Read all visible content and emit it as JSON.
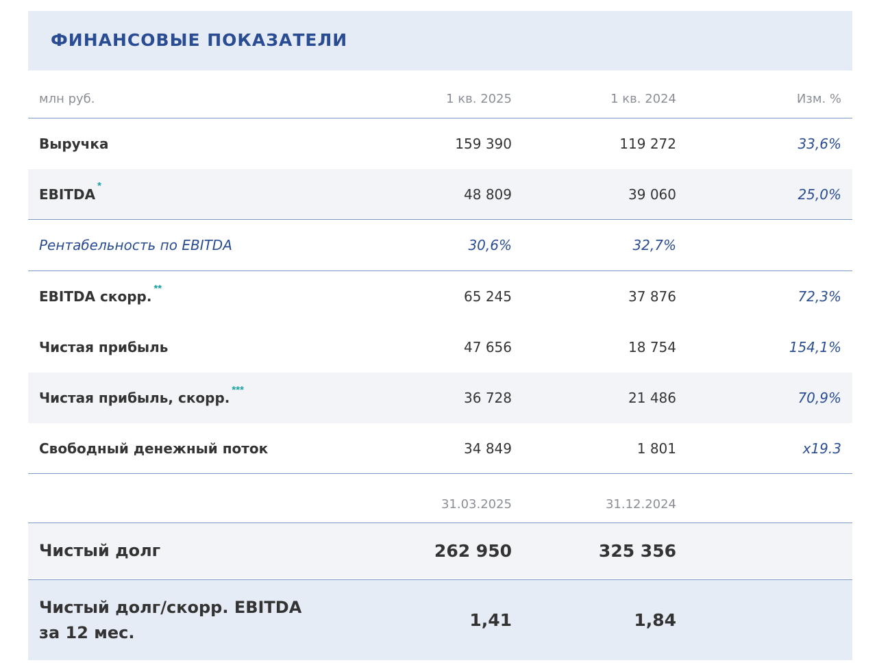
{
  "title": "ФИНАНСОВЫЕ ПОКАЗАТЕЛИ",
  "columns": {
    "unit": "млн руб.",
    "period1": "1 кв. 2025",
    "period2": "1 кв. 2024",
    "change": "Изм. %"
  },
  "rows": [
    {
      "label": "Выручка",
      "marker": "",
      "v1": "159 390",
      "v2": "119 272",
      "change": "33,6%"
    },
    {
      "label": "EBITDA",
      "marker": "*",
      "v1": "48 809",
      "v2": "39 060",
      "change": "25,0%"
    },
    {
      "label": "Рентабельность по EBITDA",
      "marker": "",
      "v1": "30,6%",
      "v2": "32,7%",
      "change": ""
    },
    {
      "label": "EBITDA скорр.",
      "marker": "**",
      "v1": "65 245",
      "v2": "37 876",
      "change": "72,3%"
    },
    {
      "label": "Чистая прибыль",
      "marker": "",
      "v1": "47 656",
      "v2": "18 754",
      "change": "154,1%"
    },
    {
      "label": "Чистая прибыль, скорр.",
      "marker": "***",
      "v1": "36 728",
      "v2": "21 486",
      "change": "70,9%"
    },
    {
      "label": "Свободный денежный поток",
      "marker": "",
      "v1": "34 849",
      "v2": "1 801",
      "change": "x19.3"
    }
  ],
  "dates": {
    "date1": "31.03.2025",
    "date2": "31.12.2024"
  },
  "debt": [
    {
      "label_line1": "Чистый долг",
      "label_line2": "",
      "v1": "262 950",
      "v2": "325 356"
    },
    {
      "label_line1": "Чистый долг/скорр. EBITDA",
      "label_line2": "за 12 мес.",
      "v1": "1,41",
      "v2": "1,84"
    }
  ]
}
